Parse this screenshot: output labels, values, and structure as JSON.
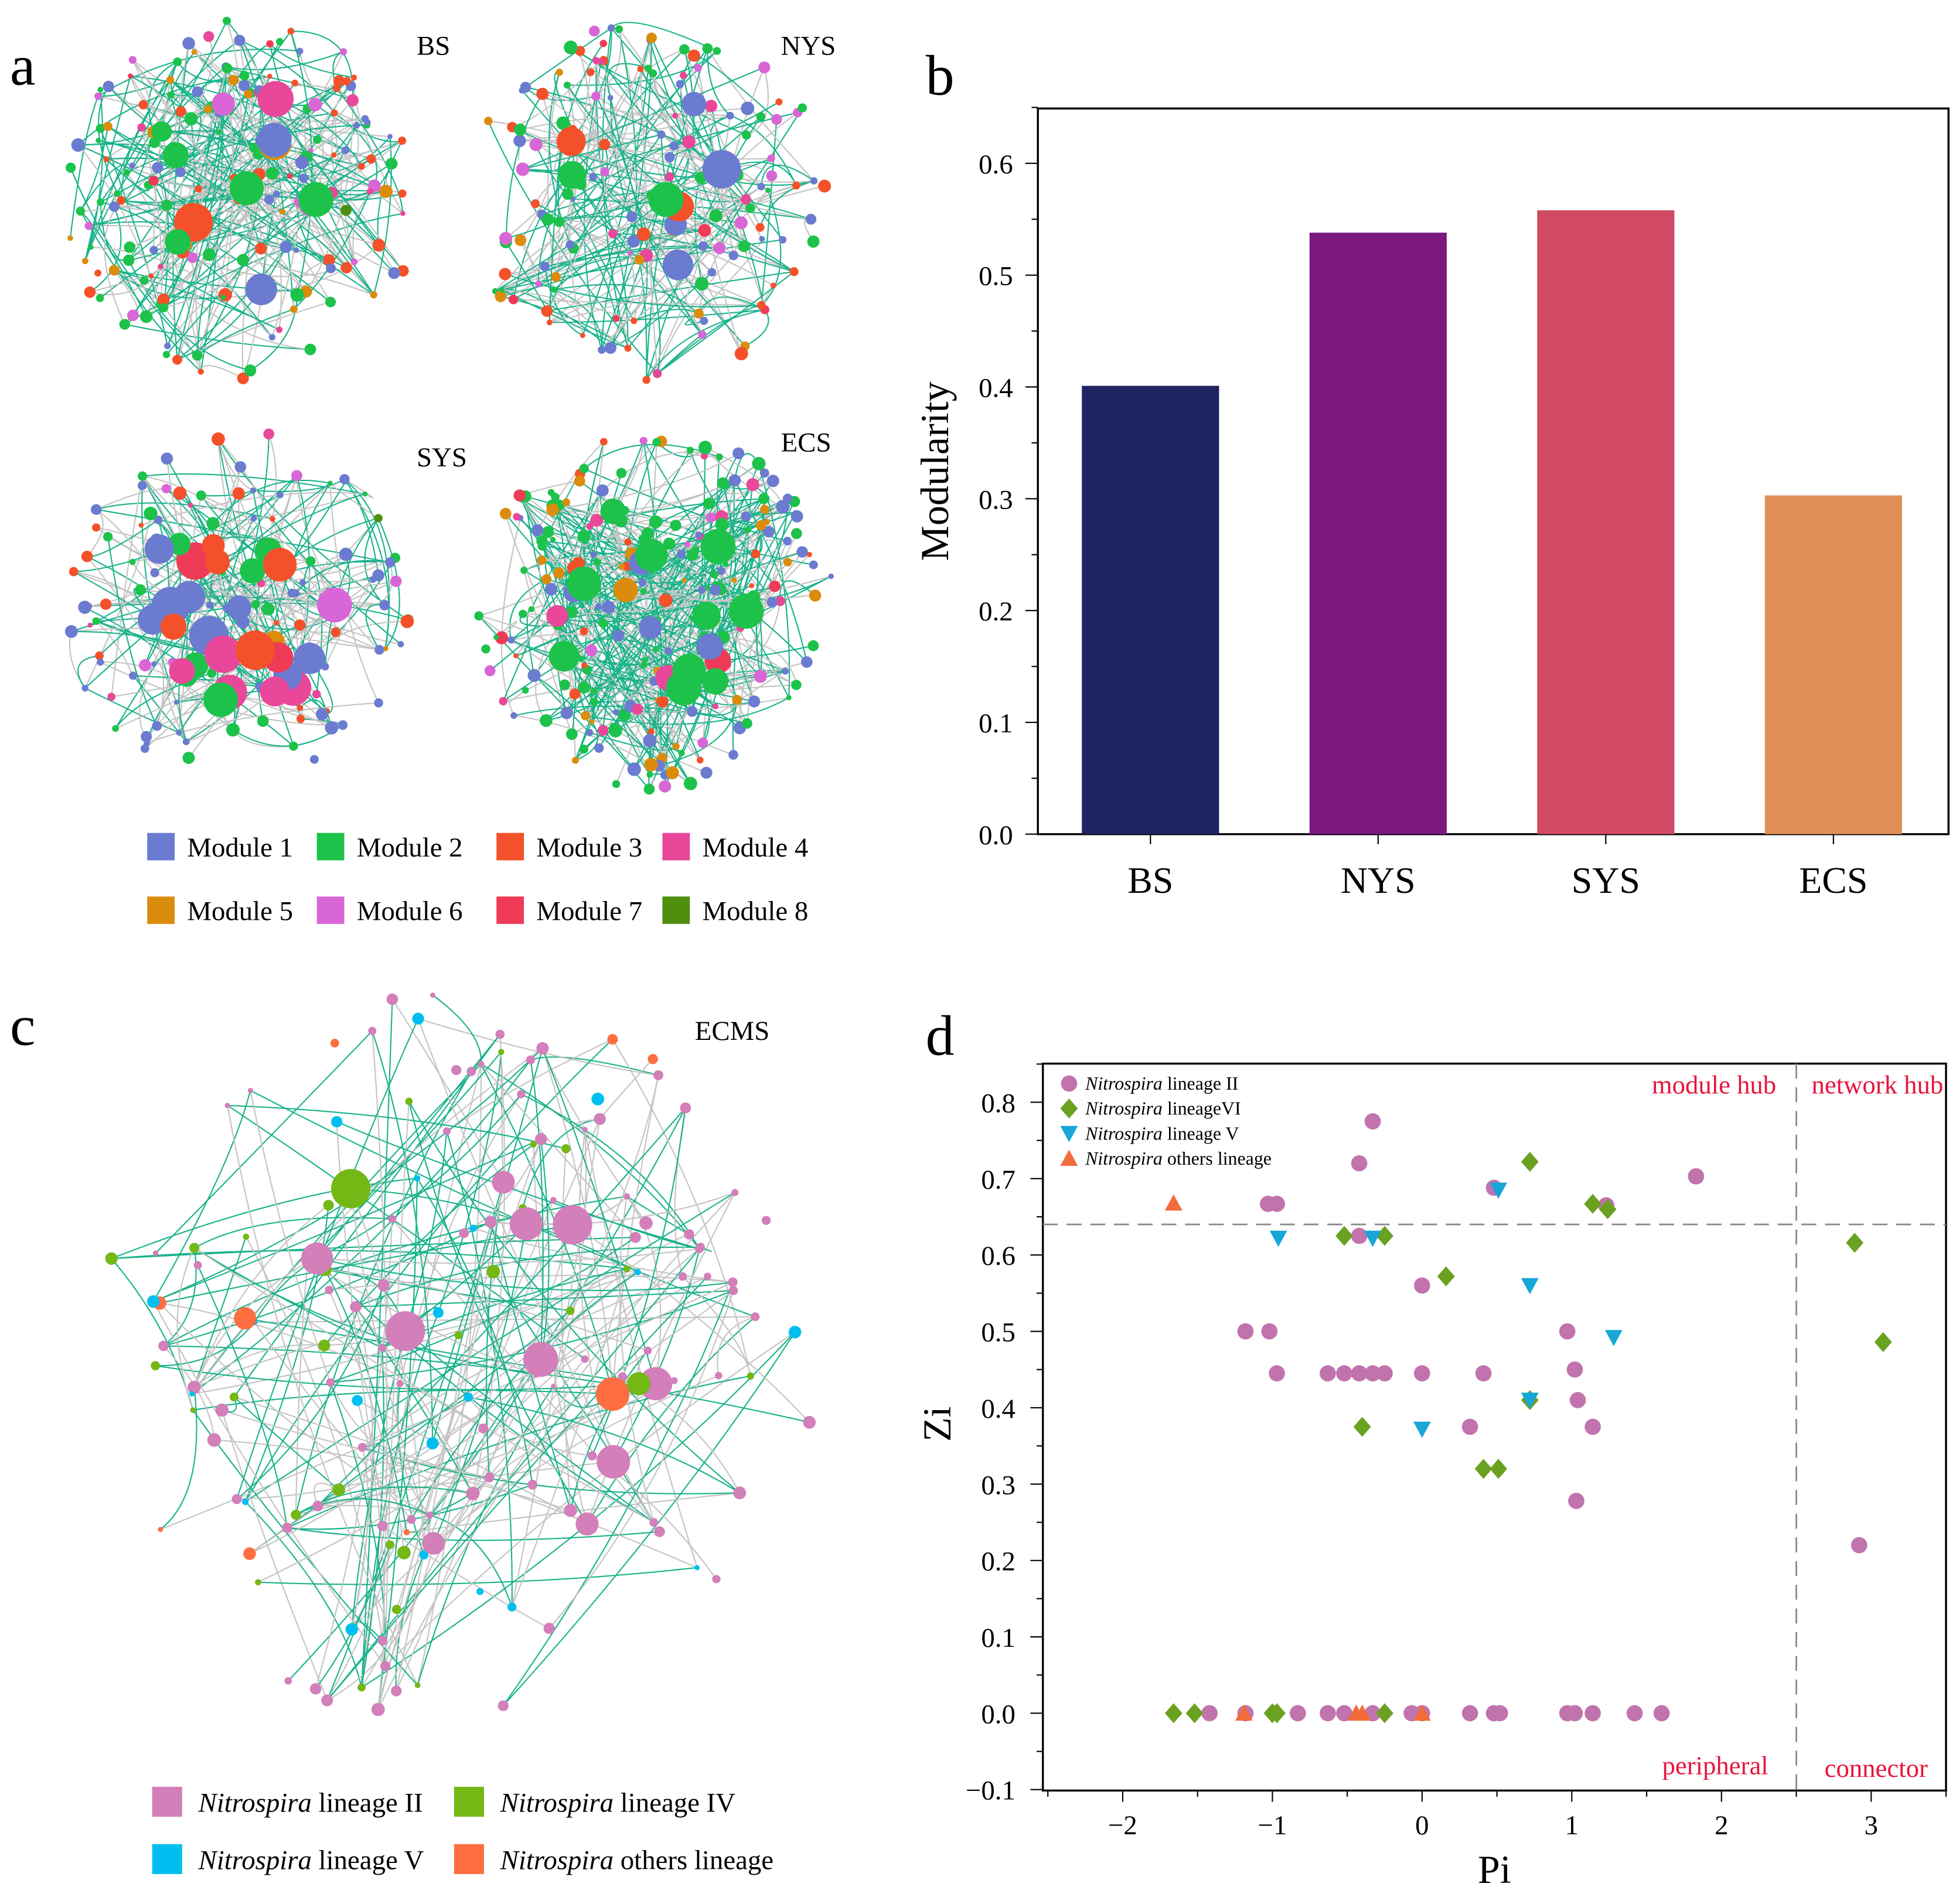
{
  "panels": {
    "a": "a",
    "b": "b",
    "c": "c",
    "d": "d"
  },
  "networks_a": {
    "labels": [
      "BS",
      "NYS",
      "SYS",
      "ECS"
    ],
    "legend": [
      {
        "label": "Module 1",
        "color": "#6b7bd0"
      },
      {
        "label": "Module 2",
        "color": "#1dc24b"
      },
      {
        "label": "Module 3",
        "color": "#f4512a"
      },
      {
        "label": "Module 4",
        "color": "#e8479a"
      },
      {
        "label": "Module 5",
        "color": "#dc8c0c"
      },
      {
        "label": "Module 6",
        "color": "#d966d6"
      },
      {
        "label": "Module 7",
        "color": "#ef3a58"
      },
      {
        "label": "Module 8",
        "color": "#4e8f0e"
      }
    ]
  },
  "network_c": {
    "label": "ECMS",
    "legend": [
      {
        "genus": "Nitrospira",
        "rest": " lineage II",
        "color": "#d27fba"
      },
      {
        "genus": "Nitrospira",
        "rest": " lineage IV",
        "color": "#74b816"
      },
      {
        "genus": "Nitrospira",
        "rest": " lineage V",
        "color": "#00bff0"
      },
      {
        "genus": "Nitrospira",
        "rest": " others lineage",
        "color": "#ff6e40"
      }
    ]
  },
  "chart_data": [
    {
      "type": "bar",
      "categories": [
        "BS",
        "NYS",
        "SYS",
        "ECS"
      ],
      "values": [
        0.401,
        0.538,
        0.558,
        0.303
      ],
      "colors": [
        "#1f2360",
        "#7b187e",
        "#cf4a62",
        "#de9056"
      ],
      "title": "",
      "xlabel": "",
      "ylabel": "Modularity",
      "ylim": [
        0,
        0.65
      ],
      "yticks": [
        "0.0",
        "0.1",
        "0.2",
        "0.3",
        "0.4",
        "0.5",
        "0.6"
      ]
    },
    {
      "type": "scatter",
      "xlabel": "Pi",
      "ylabel": "Zi",
      "xlim": [
        -2.5,
        3.5
      ],
      "ylim": [
        -0.1,
        0.85
      ],
      "xticks": [
        "−2",
        "−1",
        "0",
        "1",
        "2",
        "3"
      ],
      "yticks": [
        "−0.1",
        "0.0",
        "0.1",
        "0.2",
        "0.3",
        "0.4",
        "0.5",
        "0.6",
        "0.7",
        "0.8"
      ],
      "thresholds": {
        "zi": 0.64,
        "pi": 2.5
      },
      "quadrants": [
        "module hub",
        "network hub",
        "peripheral",
        "connector"
      ],
      "legend_position": "top-left",
      "series": [
        {
          "genus": "Nitrospira",
          "rest": " lineage II",
          "marker": "circle",
          "color": "#c173ad",
          "points": [
            [
              -0.33,
              0.775
            ],
            [
              -0.42,
              0.72
            ],
            [
              -1.03,
              0.667
            ],
            [
              -0.97,
              0.667
            ],
            [
              -0.42,
              0.625
            ],
            [
              0,
              0.56
            ],
            [
              -1.18,
              0.5
            ],
            [
              -1.02,
              0.5
            ],
            [
              -0.97,
              0.445
            ],
            [
              -0.63,
              0.445
            ],
            [
              -0.52,
              0.445
            ],
            [
              -0.42,
              0.445
            ],
            [
              -0.33,
              0.445
            ],
            [
              -0.25,
              0.445
            ],
            [
              0,
              0.445
            ],
            [
              0.41,
              0.445
            ],
            [
              0.48,
              0.688
            ],
            [
              1.83,
              0.703
            ],
            [
              1.23,
              0.665
            ],
            [
              0.97,
              0.5
            ],
            [
              1.02,
              0.45
            ],
            [
              1.04,
              0.41
            ],
            [
              1.14,
              0.375
            ],
            [
              0.32,
              0.375
            ],
            [
              1.03,
              0.278
            ],
            [
              2.92,
              0.22
            ],
            [
              -1.42,
              0
            ],
            [
              -1.18,
              0
            ],
            [
              -0.83,
              0
            ],
            [
              -0.63,
              0
            ],
            [
              -0.52,
              0
            ],
            [
              -0.33,
              0
            ],
            [
              -0.07,
              0
            ],
            [
              0,
              0
            ],
            [
              0.32,
              0
            ],
            [
              0.48,
              0
            ],
            [
              0.52,
              0
            ],
            [
              0.97,
              0
            ],
            [
              1.02,
              0
            ],
            [
              1.14,
              0
            ],
            [
              1.42,
              0
            ],
            [
              1.6,
              0
            ]
          ]
        },
        {
          "genus": "Nitrospira",
          "rest": " lineageVI",
          "marker": "diamond",
          "color": "#6aa121",
          "points": [
            [
              0.72,
              0.722
            ],
            [
              1.14,
              0.667
            ],
            [
              1.24,
              0.66
            ],
            [
              -0.52,
              0.625
            ],
            [
              -0.25,
              0.625
            ],
            [
              0.16,
              0.572
            ],
            [
              0.72,
              0.41
            ],
            [
              -0.4,
              0.375
            ],
            [
              0.41,
              0.32
            ],
            [
              0.51,
              0.32
            ],
            [
              2.89,
              0.616
            ],
            [
              3.08,
              0.486
            ],
            [
              -1.66,
              0
            ],
            [
              -1.52,
              0
            ],
            [
              -1.0,
              0
            ],
            [
              -0.97,
              0
            ],
            [
              -0.25,
              0
            ]
          ]
        },
        {
          "genus": "Nitrospira",
          "rest": " lineage V",
          "marker": "triangle-down",
          "color": "#17a6d8",
          "points": [
            [
              0.51,
              0.685
            ],
            [
              -0.96,
              0.622
            ],
            [
              -0.33,
              0.622
            ],
            [
              0.72,
              0.56
            ],
            [
              1.28,
              0.492
            ],
            [
              0,
              0.372
            ],
            [
              0.72,
              0.41
            ]
          ]
        },
        {
          "genus": "Nitrospira",
          "rest": " others lineage",
          "marker": "triangle-up",
          "color": "#f26b3a",
          "points": [
            [
              -1.66,
              0.668
            ],
            [
              -1.19,
              0
            ],
            [
              -0.44,
              0
            ],
            [
              -0.4,
              0
            ],
            [
              0,
              0
            ]
          ]
        }
      ]
    }
  ]
}
